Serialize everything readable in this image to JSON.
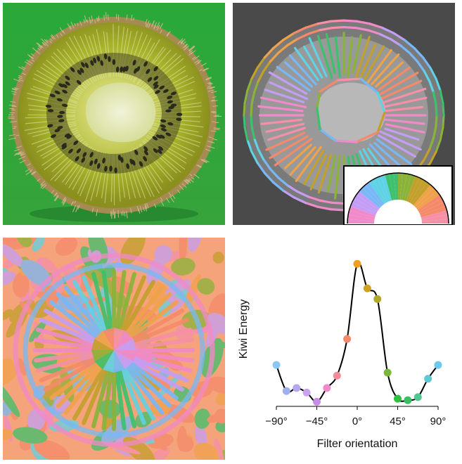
{
  "panels": {
    "photo": {
      "name": "kiwi-cross-section-photo",
      "background": "#2fa43c",
      "flesh": "#a9b52a",
      "core": "#e9eec8",
      "seed": "#2a2a1c"
    },
    "overlay": {
      "name": "kiwi-orientation-overlay",
      "background": "#4a4a4a"
    },
    "field": {
      "name": "orientation-energy-map"
    },
    "legend": {
      "name": "orientation-color-wheel"
    }
  },
  "orientation_palette": [
    "#f08ac8",
    "#c49ef4",
    "#79b8f6",
    "#5fd2e4",
    "#3ec06c",
    "#8ab33a",
    "#c2a02c",
    "#f0a24a",
    "#f58a6a",
    "#f590a8"
  ],
  "chart_data": {
    "type": "line",
    "xlabel": "Filter orientation",
    "ylabel": "Kiwi Energy",
    "xlim": [
      -90,
      90
    ],
    "x_ticks": [
      -90,
      -45,
      0,
      45,
      90
    ],
    "x_tick_labels": [
      "−90°",
      "−45°",
      "0°",
      "45°",
      "90°"
    ],
    "grid": false,
    "series": [
      {
        "x": [
          -90,
          -78.75,
          -67.5,
          -56.25,
          -45,
          -33.75,
          -22.5,
          -11.25,
          0,
          11.25,
          22.5,
          33.75,
          45,
          56.25,
          67.5,
          78.75,
          90
        ],
        "y": [
          0.27,
          0.1,
          0.12,
          0.09,
          0.03,
          0.12,
          0.2,
          0.44,
          0.93,
          0.77,
          0.7,
          0.22,
          0.05,
          0.04,
          0.06,
          0.18,
          0.27
        ],
        "colors": [
          "#88c8f2",
          "#9fb0f0",
          "#b7a7f0",
          "#c9a2f0",
          "#c98be8",
          "#f08ac8",
          "#f58a9a",
          "#f58a6a",
          "#f0a020",
          "#d0a020",
          "#b0a82a",
          "#7ab63a",
          "#2ec040",
          "#38c060",
          "#50c890",
          "#5ccad4",
          "#6ec9ee"
        ]
      }
    ]
  }
}
